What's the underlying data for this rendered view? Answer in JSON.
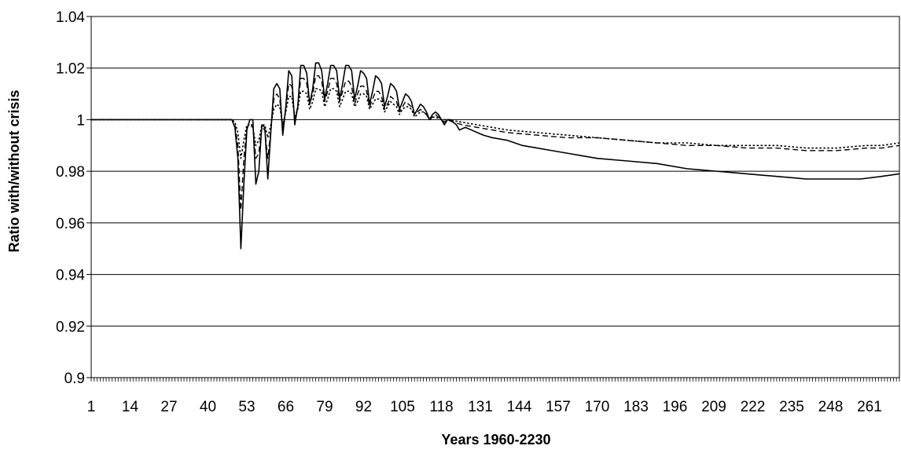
{
  "chart_data": {
    "type": "line",
    "title": "",
    "xlabel": "Years 1960-2230",
    "ylabel": "Ratio with/without crisis",
    "xlim": [
      1,
      271
    ],
    "ylim": [
      0.9,
      1.04
    ],
    "y_ticks": [
      0.9,
      0.92,
      0.94,
      0.96,
      0.98,
      1,
      1.02,
      1.04
    ],
    "y_tick_labels": [
      "0.9",
      "0.92",
      "0.94",
      "0.96",
      "0.98",
      "1",
      "1.02",
      "1.04"
    ],
    "x_tick_labels": [
      "1",
      "14",
      "27",
      "40",
      "53",
      "66",
      "79",
      "92",
      "105",
      "118",
      "131",
      "144",
      "157",
      "170",
      "183",
      "196",
      "209",
      "222",
      "235",
      "248",
      "261"
    ],
    "grid": "horizontal major gridlines",
    "legend": "none",
    "series": [
      {
        "style": "solid",
        "points": [
          [
            1,
            1.0
          ],
          [
            48,
            1.0
          ],
          [
            49,
            0.997
          ],
          [
            50,
            0.985
          ],
          [
            51,
            0.95
          ],
          [
            52,
            0.975
          ],
          [
            53,
            0.996
          ],
          [
            54,
            1.0
          ],
          [
            55,
            1.0
          ],
          [
            56,
            0.975
          ],
          [
            57,
            0.98
          ],
          [
            58,
            0.998
          ],
          [
            59,
            0.997
          ],
          [
            60,
            0.977
          ],
          [
            61,
            0.995
          ],
          [
            62,
            1.012
          ],
          [
            63,
            1.014
          ],
          [
            64,
            1.012
          ],
          [
            65,
            0.994
          ],
          [
            66,
            1.005
          ],
          [
            67,
            1.019
          ],
          [
            68,
            1.017
          ],
          [
            69,
            0.998
          ],
          [
            70,
            1.005
          ],
          [
            71,
            1.021
          ],
          [
            72,
            1.021
          ],
          [
            73,
            1.018
          ],
          [
            74,
            1.006
          ],
          [
            75,
            1.012
          ],
          [
            76,
            1.022
          ],
          [
            77,
            1.022
          ],
          [
            78,
            1.019
          ],
          [
            79,
            1.008
          ],
          [
            80,
            1.014
          ],
          [
            81,
            1.021
          ],
          [
            82,
            1.021
          ],
          [
            83,
            1.019
          ],
          [
            84,
            1.008
          ],
          [
            85,
            1.014
          ],
          [
            86,
            1.021
          ],
          [
            87,
            1.021
          ],
          [
            88,
            1.019
          ],
          [
            89,
            1.008
          ],
          [
            90,
            1.013
          ],
          [
            91,
            1.019
          ],
          [
            92,
            1.018
          ],
          [
            93,
            1.016
          ],
          [
            94,
            1.006
          ],
          [
            95,
            1.011
          ],
          [
            96,
            1.017
          ],
          [
            97,
            1.016
          ],
          [
            98,
            1.014
          ],
          [
            99,
            1.005
          ],
          [
            100,
            1.009
          ],
          [
            101,
            1.014
          ],
          [
            102,
            1.013
          ],
          [
            103,
            1.011
          ],
          [
            104,
            1.004
          ],
          [
            105,
            1.007
          ],
          [
            106,
            1.01
          ],
          [
            107,
            1.009
          ],
          [
            108,
            1.007
          ],
          [
            109,
            1.002
          ],
          [
            110,
            1.004
          ],
          [
            111,
            1.006
          ],
          [
            112,
            1.005
          ],
          [
            113,
            1.003
          ],
          [
            114,
            1.0
          ],
          [
            115,
            1.002
          ],
          [
            116,
            1.003
          ],
          [
            117,
            1.002
          ],
          [
            118,
            1.0
          ],
          [
            119,
            0.998
          ],
          [
            120,
            1.0
          ],
          [
            121,
            1.0
          ],
          [
            122,
            0.999
          ],
          [
            123,
            0.998
          ],
          [
            124,
            0.996
          ],
          [
            126,
            0.997
          ],
          [
            128,
            0.996
          ],
          [
            130,
            0.995
          ],
          [
            132,
            0.994
          ],
          [
            135,
            0.993
          ],
          [
            140,
            0.992
          ],
          [
            145,
            0.99
          ],
          [
            150,
            0.989
          ],
          [
            155,
            0.988
          ],
          [
            160,
            0.987
          ],
          [
            165,
            0.986
          ],
          [
            170,
            0.985
          ],
          [
            180,
            0.984
          ],
          [
            190,
            0.983
          ],
          [
            200,
            0.981
          ],
          [
            210,
            0.98
          ],
          [
            220,
            0.979
          ],
          [
            230,
            0.978
          ],
          [
            240,
            0.977
          ],
          [
            250,
            0.977
          ],
          [
            258,
            0.977
          ],
          [
            265,
            0.978
          ],
          [
            271,
            0.979
          ]
        ]
      },
      {
        "style": "dashed",
        "points": [
          [
            1,
            1.0
          ],
          [
            48,
            1.0
          ],
          [
            49,
            0.998
          ],
          [
            50,
            0.99
          ],
          [
            51,
            0.965
          ],
          [
            52,
            0.985
          ],
          [
            53,
            0.997
          ],
          [
            54,
            0.998
          ],
          [
            55,
            0.998
          ],
          [
            56,
            0.985
          ],
          [
            57,
            0.987
          ],
          [
            58,
            0.997
          ],
          [
            59,
            0.996
          ],
          [
            60,
            0.985
          ],
          [
            61,
            0.996
          ],
          [
            62,
            1.008
          ],
          [
            63,
            1.01
          ],
          [
            64,
            1.008
          ],
          [
            65,
            0.996
          ],
          [
            66,
            1.004
          ],
          [
            67,
            1.014
          ],
          [
            68,
            1.013
          ],
          [
            69,
            1.0
          ],
          [
            70,
            1.005
          ],
          [
            71,
            1.016
          ],
          [
            72,
            1.016
          ],
          [
            73,
            1.014
          ],
          [
            74,
            1.006
          ],
          [
            75,
            1.01
          ],
          [
            76,
            1.017
          ],
          [
            77,
            1.017
          ],
          [
            78,
            1.015
          ],
          [
            79,
            1.007
          ],
          [
            80,
            1.011
          ],
          [
            81,
            1.016
          ],
          [
            82,
            1.016
          ],
          [
            83,
            1.014
          ],
          [
            84,
            1.007
          ],
          [
            85,
            1.011
          ],
          [
            86,
            1.015
          ],
          [
            87,
            1.015
          ],
          [
            88,
            1.013
          ],
          [
            89,
            1.006
          ],
          [
            90,
            1.01
          ],
          [
            91,
            1.013
          ],
          [
            92,
            1.013
          ],
          [
            93,
            1.011
          ],
          [
            94,
            1.005
          ],
          [
            95,
            1.008
          ],
          [
            96,
            1.011
          ],
          [
            97,
            1.011
          ],
          [
            98,
            1.009
          ],
          [
            99,
            1.004
          ],
          [
            100,
            1.006
          ],
          [
            101,
            1.009
          ],
          [
            102,
            1.008
          ],
          [
            103,
            1.007
          ],
          [
            104,
            1.003
          ],
          [
            105,
            1.005
          ],
          [
            106,
            1.007
          ],
          [
            107,
            1.006
          ],
          [
            108,
            1.005
          ],
          [
            109,
            1.002
          ],
          [
            110,
            1.003
          ],
          [
            111,
            1.004
          ],
          [
            112,
            1.003
          ],
          [
            113,
            1.002
          ],
          [
            114,
            1.0
          ],
          [
            115,
            1.001
          ],
          [
            116,
            1.002
          ],
          [
            117,
            1.001
          ],
          [
            118,
            1.0
          ],
          [
            119,
            0.999
          ],
          [
            120,
            1.0
          ],
          [
            122,
            0.999
          ],
          [
            125,
            0.998
          ],
          [
            130,
            0.997
          ],
          [
            135,
            0.996
          ],
          [
            140,
            0.995
          ],
          [
            150,
            0.994
          ],
          [
            160,
            0.993
          ],
          [
            170,
            0.993
          ],
          [
            180,
            0.992
          ],
          [
            190,
            0.991
          ],
          [
            200,
            0.99
          ],
          [
            210,
            0.99
          ],
          [
            220,
            0.989
          ],
          [
            230,
            0.989
          ],
          [
            240,
            0.988
          ],
          [
            250,
            0.988
          ],
          [
            260,
            0.989
          ],
          [
            265,
            0.989
          ],
          [
            271,
            0.99
          ]
        ]
      },
      {
        "style": "dotted",
        "points": [
          [
            1,
            1.0
          ],
          [
            48,
            1.0
          ],
          [
            49,
            0.999
          ],
          [
            50,
            0.995
          ],
          [
            51,
            0.985
          ],
          [
            52,
            0.992
          ],
          [
            53,
            0.998
          ],
          [
            54,
            0.998
          ],
          [
            55,
            0.997
          ],
          [
            56,
            0.99
          ],
          [
            57,
            0.992
          ],
          [
            58,
            0.998
          ],
          [
            59,
            0.998
          ],
          [
            60,
            0.993
          ],
          [
            61,
            0.998
          ],
          [
            62,
            1.004
          ],
          [
            63,
            1.006
          ],
          [
            64,
            1.005
          ],
          [
            65,
            0.998
          ],
          [
            66,
            1.003
          ],
          [
            67,
            1.009
          ],
          [
            68,
            1.009
          ],
          [
            69,
            1.001
          ],
          [
            70,
            1.004
          ],
          [
            71,
            1.011
          ],
          [
            72,
            1.011
          ],
          [
            73,
            1.01
          ],
          [
            74,
            1.004
          ],
          [
            75,
            1.007
          ],
          [
            76,
            1.012
          ],
          [
            77,
            1.012
          ],
          [
            78,
            1.011
          ],
          [
            79,
            1.005
          ],
          [
            80,
            1.008
          ],
          [
            81,
            1.012
          ],
          [
            82,
            1.012
          ],
          [
            83,
            1.011
          ],
          [
            84,
            1.005
          ],
          [
            85,
            1.008
          ],
          [
            86,
            1.011
          ],
          [
            87,
            1.011
          ],
          [
            88,
            1.01
          ],
          [
            89,
            1.005
          ],
          [
            90,
            1.007
          ],
          [
            91,
            1.01
          ],
          [
            92,
            1.01
          ],
          [
            93,
            1.009
          ],
          [
            94,
            1.004
          ],
          [
            95,
            1.006
          ],
          [
            96,
            1.008
          ],
          [
            97,
            1.008
          ],
          [
            98,
            1.007
          ],
          [
            99,
            1.003
          ],
          [
            100,
            1.005
          ],
          [
            101,
            1.007
          ],
          [
            102,
            1.006
          ],
          [
            103,
            1.005
          ],
          [
            104,
            1.002
          ],
          [
            105,
            1.004
          ],
          [
            106,
            1.005
          ],
          [
            107,
            1.005
          ],
          [
            108,
            1.004
          ],
          [
            109,
            1.001
          ],
          [
            110,
            1.002
          ],
          [
            111,
            1.003
          ],
          [
            112,
            1.003
          ],
          [
            113,
            1.002
          ],
          [
            114,
            1.0
          ],
          [
            115,
            1.001
          ],
          [
            116,
            1.001
          ],
          [
            118,
            1.0
          ],
          [
            120,
            1.0
          ],
          [
            125,
            0.999
          ],
          [
            130,
            0.998
          ],
          [
            140,
            0.996
          ],
          [
            150,
            0.995
          ],
          [
            160,
            0.994
          ],
          [
            170,
            0.993
          ],
          [
            180,
            0.992
          ],
          [
            190,
            0.991
          ],
          [
            200,
            0.991
          ],
          [
            210,
            0.99
          ],
          [
            220,
            0.99
          ],
          [
            230,
            0.99
          ],
          [
            240,
            0.989
          ],
          [
            250,
            0.989
          ],
          [
            260,
            0.99
          ],
          [
            265,
            0.99
          ],
          [
            271,
            0.991
          ]
        ]
      }
    ]
  }
}
